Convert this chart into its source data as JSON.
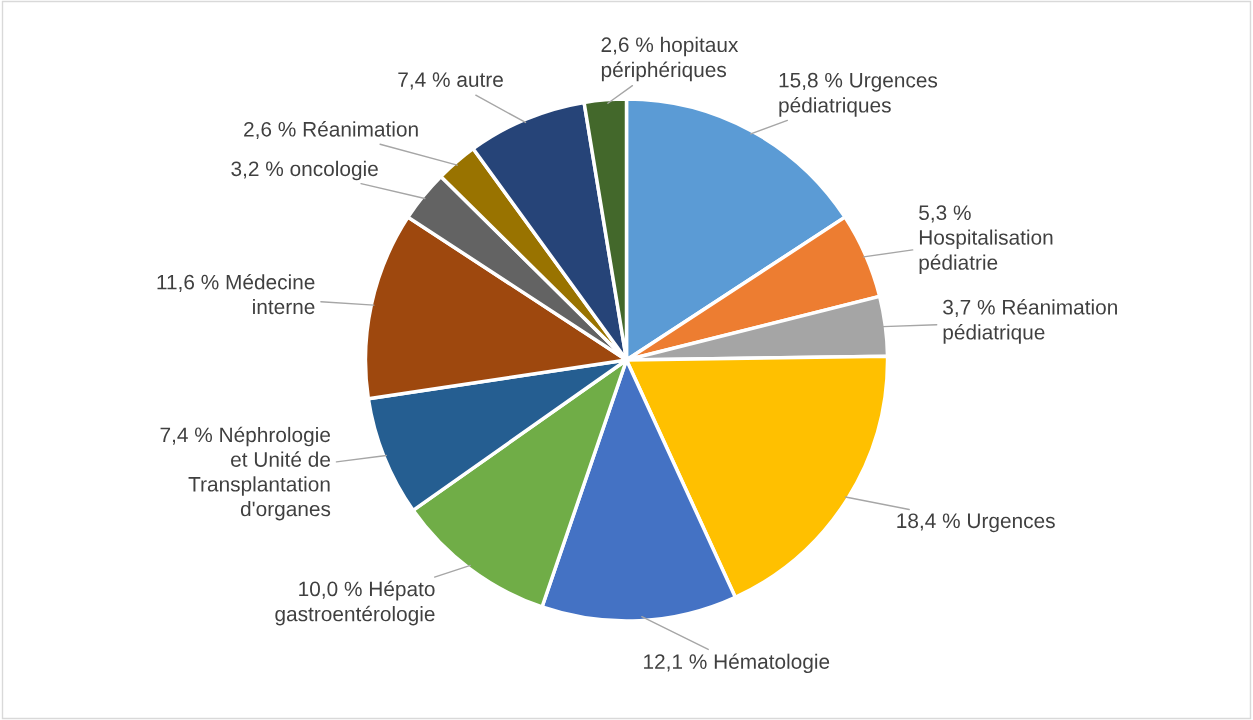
{
  "chart_data": {
    "type": "pie",
    "categories": [
      "Urgences pédiatriques",
      "Hospitalisation pédiatrie",
      "Réanimation pédiatrique",
      "Urgences",
      "Hématologie",
      "Hépato gastroentérologie",
      "Néphrologie et Unité de Transplantation d'organes",
      "Médecine interne",
      "oncologie",
      "Réanimation",
      "autre",
      "hopitaux périphériques"
    ],
    "values": [
      15.8,
      5.3,
      3.7,
      18.4,
      12.1,
      10.0,
      7.4,
      11.6,
      3.2,
      2.6,
      7.4,
      2.6
    ],
    "value_labels": [
      "15,8 %",
      "5,3 %",
      "3,7 %",
      "18,4 %",
      "12,1 %",
      "10,0 %",
      "7,4 %",
      "11,6 %",
      "3,2 %",
      "2,6 %",
      "7,4 %",
      "2,6 %"
    ],
    "colors": [
      "#5b9bd5",
      "#ed7d31",
      "#a5a5a5",
      "#ffc000",
      "#4472c4",
      "#70ad47",
      "#255e91",
      "#9e480e",
      "#636363",
      "#997300",
      "#264478",
      "#43682b"
    ]
  }
}
